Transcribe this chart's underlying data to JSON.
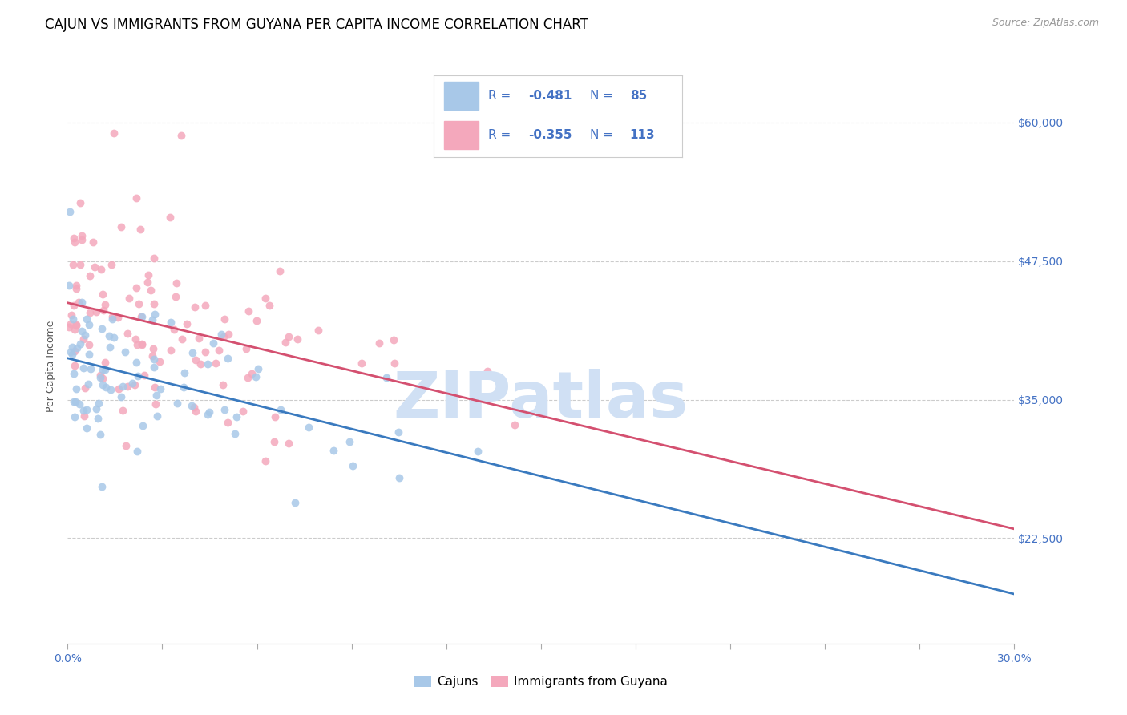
{
  "title": "CAJUN VS IMMIGRANTS FROM GUYANA PER CAPITA INCOME CORRELATION CHART",
  "source": "Source: ZipAtlas.com",
  "ylabel": "Per Capita Income",
  "xmin": 0.0,
  "xmax": 30.0,
  "ymin": 13000,
  "ymax": 63000,
  "cajun_color": "#a8c8e8",
  "cajun_edge_color": "#a8c8e8",
  "cajun_line_color": "#3a7abf",
  "guyana_color": "#f4a8bc",
  "guyana_edge_color": "#f4a8bc",
  "guyana_line_color": "#d45070",
  "ytick_vals": [
    22500,
    35000,
    47500,
    60000
  ],
  "ytick_labels": [
    "$22,500",
    "$35,000",
    "$47,500",
    "$60,000"
  ],
  "ytick_color": "#4472c4",
  "grid_color": "#cccccc",
  "watermark": "ZIPatlas",
  "watermark_color": "#d0e0f4",
  "legend_label_cajun": "Cajuns",
  "legend_label_guyana": "Immigrants from Guyana",
  "legend_all_color": "#4472c4",
  "cajun_R": "-0.481",
  "cajun_N": "85",
  "guyana_R": "-0.355",
  "guyana_N": "113",
  "title_fontsize": 12,
  "source_fontsize": 9,
  "tick_fontsize": 10,
  "scatter_size": 50,
  "scatter_alpha": 0.85,
  "line_width": 2.0
}
